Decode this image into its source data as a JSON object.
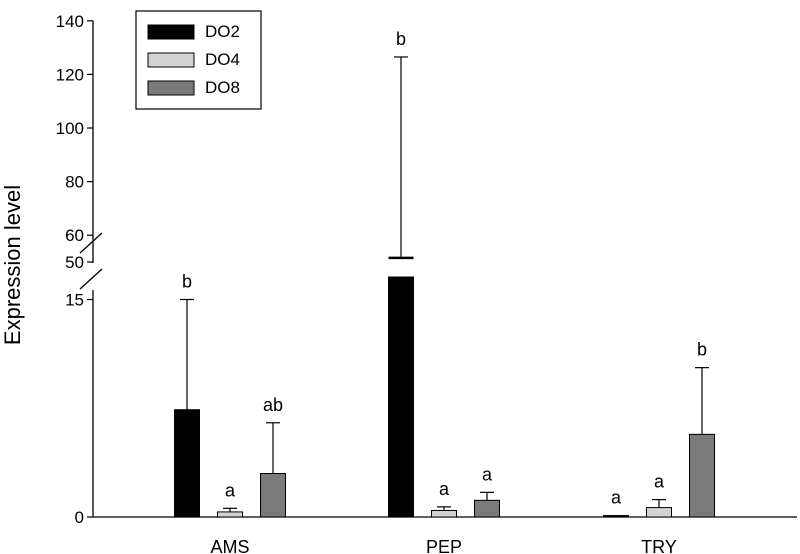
{
  "chart_data": {
    "type": "bar",
    "ylabel": "Expression level",
    "xlabel": "",
    "categories": [
      "AMS",
      "PEP",
      "TRY"
    ],
    "y_axis_break": {
      "lower_segment": [
        0,
        15
      ],
      "upper_segment": [
        50,
        140
      ]
    },
    "yticks_lower": [
      0,
      15
    ],
    "yticks_upper": [
      50,
      60,
      80,
      100,
      120,
      140
    ],
    "series": [
      {
        "name": "DO2",
        "color": "#000000",
        "values": [
          7.4,
          52,
          0.1
        ],
        "error": [
          7.6,
          74.5,
          0
        ]
      },
      {
        "name": "DO4",
        "color": "#d3d3d3",
        "values": [
          0.35,
          0.45,
          0.65
        ],
        "error": [
          0.25,
          0.25,
          0.55
        ]
      },
      {
        "name": "DO8",
        "color": "#7a7a7a",
        "values": [
          3.0,
          1.15,
          5.7
        ],
        "error": [
          3.5,
          0.55,
          4.6
        ]
      }
    ],
    "significance_letters": [
      [
        "b",
        "b",
        "a"
      ],
      [
        "a",
        "a",
        "a"
      ],
      [
        "ab",
        "a",
        "b"
      ]
    ],
    "legend": {
      "position": "top-left",
      "entries": [
        "DO2",
        "DO4",
        "DO8"
      ]
    },
    "grid": false
  }
}
